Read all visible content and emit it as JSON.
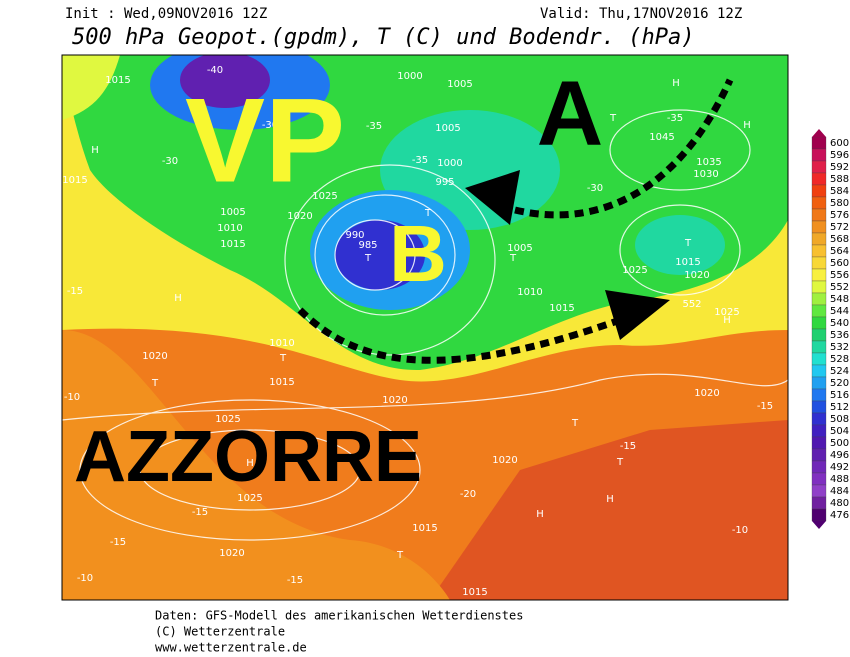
{
  "header": {
    "init": "Init : Wed,09NOV2016 12Z",
    "valid": "Valid: Thu,17NOV2016 12Z",
    "title": "500 hPa Geopot.(gpdm), T (C) und Bodendr. (hPa)"
  },
  "annotations": {
    "vp": "VP",
    "a": "A",
    "b": "B",
    "azzorre": "AZZORRE"
  },
  "map_labels": [
    "1015",
    "H",
    "1015",
    "1005",
    "1010",
    "1015",
    "1020",
    "1025",
    "990",
    "985",
    "T",
    "T",
    "1000",
    "995",
    "1005",
    "1005",
    "1000",
    "T",
    "1005",
    "1010",
    "1015",
    "1025",
    "1015",
    "1020",
    "T",
    "H",
    "H",
    "T",
    "1045",
    "1035",
    "1030",
    "H",
    "1010",
    "T",
    "1015",
    "1020",
    "T",
    "1020",
    "1025",
    "H",
    "1025",
    "1020",
    "T",
    "1015",
    "1015",
    "1020",
    "T",
    "T",
    "H",
    "H",
    "1020",
    "1025",
    "H",
    "552",
    "-15",
    "-15",
    "-10",
    "-10",
    "-15",
    "-15",
    "-20",
    "-15",
    "-10",
    "-15",
    "-30",
    "-30",
    "-35",
    "-35",
    "-30",
    "-35",
    "-40"
  ],
  "legend": {
    "ticks": [
      600,
      596,
      592,
      588,
      584,
      580,
      576,
      572,
      568,
      564,
      560,
      556,
      552,
      548,
      544,
      540,
      536,
      532,
      528,
      524,
      520,
      516,
      512,
      508,
      504,
      500,
      496,
      492,
      488,
      484,
      480,
      476
    ],
    "colors": [
      "#a0004e",
      "#c8105a",
      "#e0204a",
      "#f02828",
      "#f04010",
      "#f06010",
      "#f07818",
      "#f09020",
      "#f0a828",
      "#f8c030",
      "#f8d838",
      "#f8f040",
      "#e0f840",
      "#a0f040",
      "#60e840",
      "#30d840",
      "#20d070",
      "#20d8a0",
      "#20e0d0",
      "#20c8f0",
      "#20a0f0",
      "#2078f0",
      "#2050e0",
      "#3030d0",
      "#4020c0",
      "#5018b0",
      "#6020b0",
      "#7028b8",
      "#8030c0",
      "#9040c8",
      "#7020a0",
      "#500070"
    ]
  },
  "footer": {
    "line1": "Daten: GFS-Modell des amerikanischen Wetterdienstes",
    "line2": "(C) Wetterzentrale",
    "line3": "www.wetterzentrale.de"
  }
}
